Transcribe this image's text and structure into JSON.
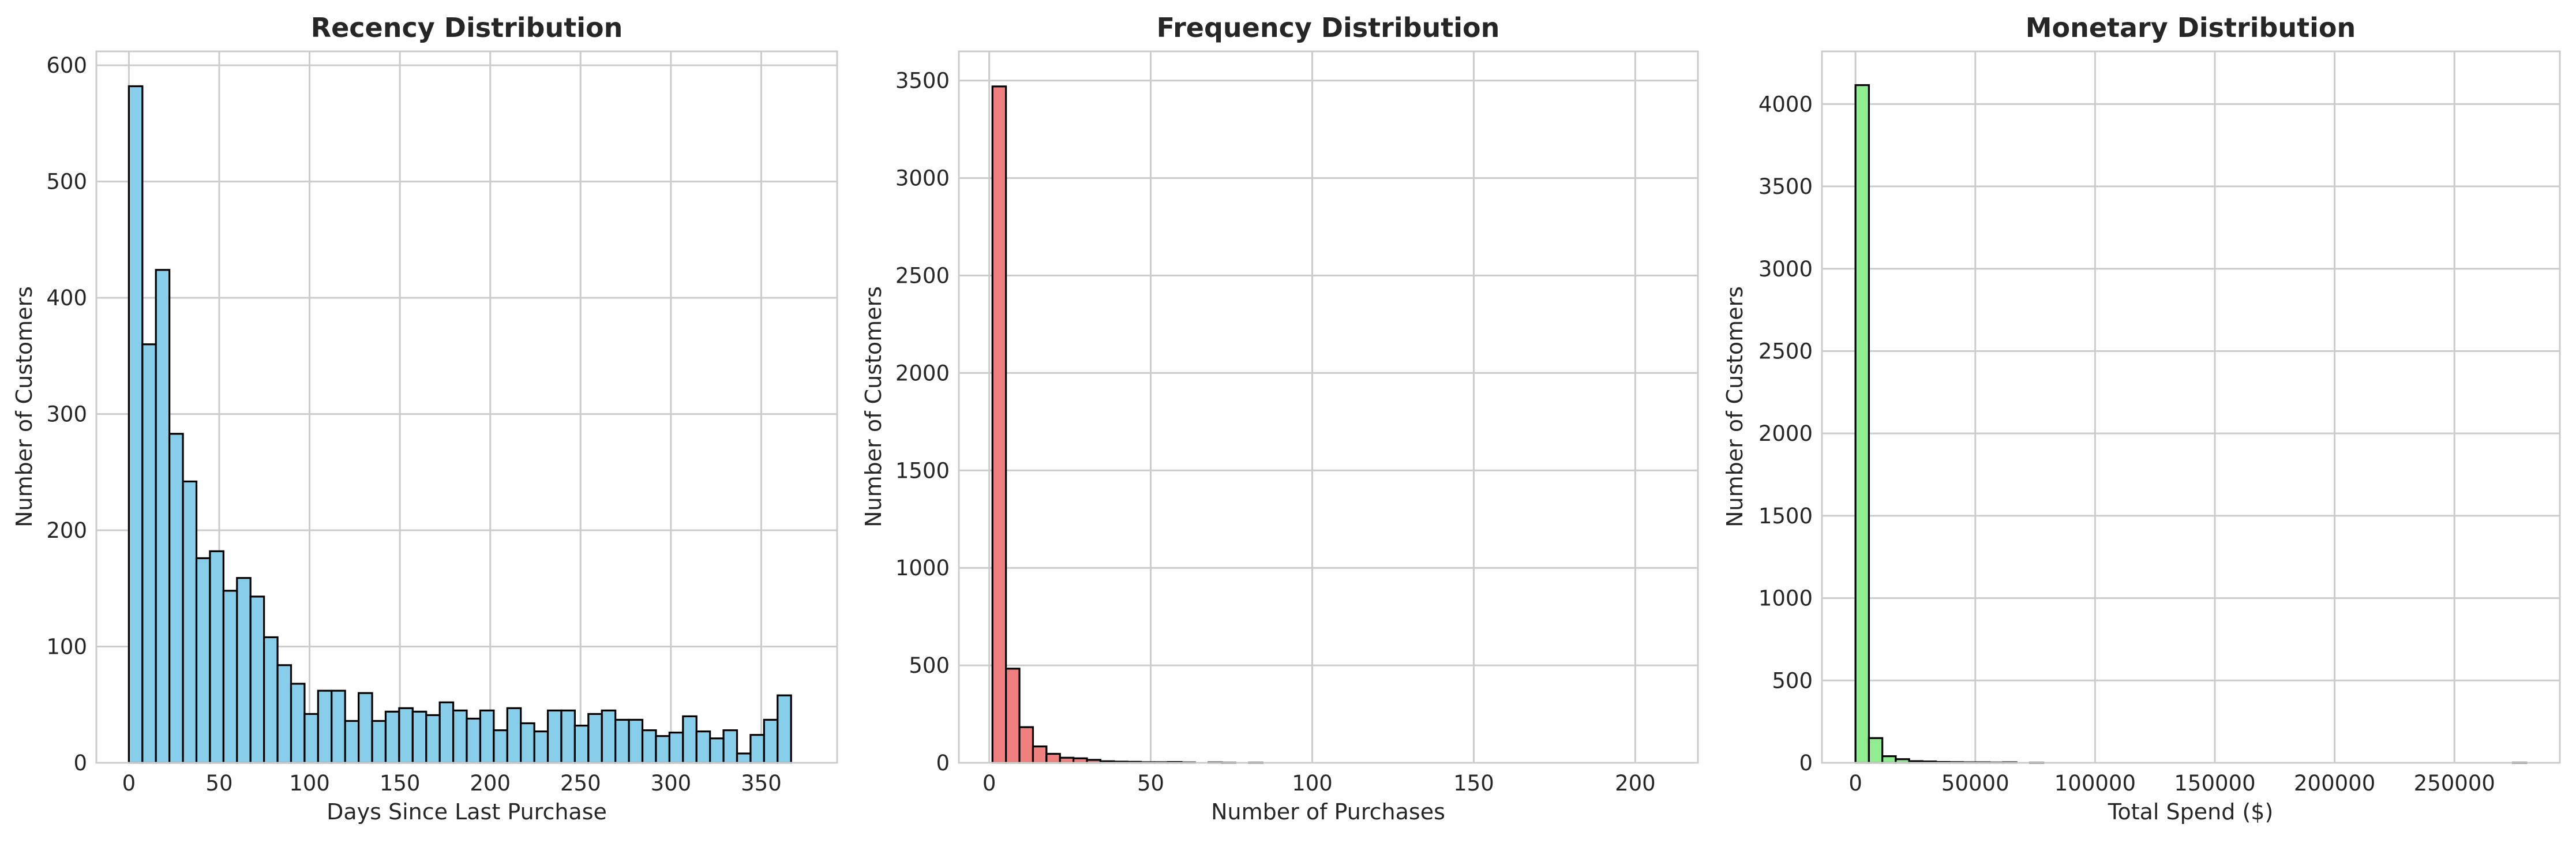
{
  "colors": {
    "background": "#ffffff",
    "grid": "#cccccc",
    "spine": "#cccccc",
    "edge": "#000000",
    "recency_fill": "#87ceeb",
    "frequency_fill": "#f08080",
    "monetary_fill": "#90ee90"
  },
  "chart_data": [
    {
      "type": "bar",
      "title": "Recency Distribution",
      "xlabel": "Days Since Last Purchase",
      "ylabel": "Number of Customers",
      "xlim": [
        -18,
        392
      ],
      "ylim": [
        0,
        612
      ],
      "xticks": [
        0,
        50,
        100,
        150,
        200,
        250,
        300,
        350
      ],
      "yticks": [
        0,
        100,
        200,
        300,
        400,
        500,
        600
      ],
      "grid": true,
      "color": "#87ceeb",
      "bin_start": 0,
      "bin_width": 7.48,
      "values": [
        582,
        360,
        424,
        283,
        242,
        176,
        182,
        148,
        159,
        143,
        108,
        84,
        68,
        42,
        62,
        62,
        36,
        60,
        36,
        44,
        47,
        44,
        41,
        52,
        45,
        38,
        45,
        28,
        47,
        34,
        27,
        45,
        45,
        32,
        42,
        45,
        37,
        37,
        28,
        23,
        26,
        40,
        27,
        21,
        28,
        8,
        24,
        37,
        58
      ]
    },
    {
      "type": "bar",
      "title": "Frequency Distribution",
      "xlabel": "Number of Purchases",
      "ylabel": "Number of Customers",
      "xlim": [
        -9.4,
        219.4
      ],
      "ylim": [
        0,
        3650
      ],
      "xticks": [
        0,
        50,
        100,
        150,
        200
      ],
      "yticks": [
        0,
        500,
        1000,
        1500,
        2000,
        2500,
        3000,
        3500
      ],
      "grid": true,
      "color": "#f08080",
      "bin_start": 1,
      "bin_width": 4.18,
      "values": [
        3470,
        483,
        183,
        84,
        46,
        26,
        23,
        15,
        8,
        6,
        5,
        3,
        3,
        4,
        2,
        0,
        2,
        1,
        0,
        1,
        0,
        0,
        0,
        0,
        0,
        0,
        0,
        0,
        0,
        0,
        0,
        0,
        0,
        0,
        0,
        0,
        0,
        0,
        0,
        0,
        0,
        0,
        0,
        0,
        0,
        0,
        0,
        0,
        0,
        0
      ]
    },
    {
      "type": "bar",
      "title": "Monetary Distribution",
      "xlabel": "Total Spend ($)",
      "ylabel": "Number of Customers",
      "xlim": [
        -14000,
        294000
      ],
      "ylim": [
        0,
        4320
      ],
      "xticks": [
        0,
        50000,
        100000,
        150000,
        200000,
        250000
      ],
      "yticks": [
        0,
        500,
        1000,
        1500,
        2000,
        2500,
        3000,
        3500,
        4000
      ],
      "grid": true,
      "color": "#90ee90",
      "bin_start": 0,
      "bin_width": 5600,
      "values": [
        4115,
        150,
        40,
        22,
        10,
        8,
        5,
        4,
        3,
        3,
        2,
        3,
        0,
        1,
        0,
        0,
        0,
        0,
        0,
        0,
        0,
        0,
        0,
        0,
        0,
        0,
        0,
        0,
        0,
        0,
        0,
        0,
        0,
        0,
        0,
        0,
        0,
        0,
        0,
        0,
        0,
        0,
        0,
        0,
        0,
        0,
        0,
        0,
        0,
        1
      ]
    }
  ]
}
